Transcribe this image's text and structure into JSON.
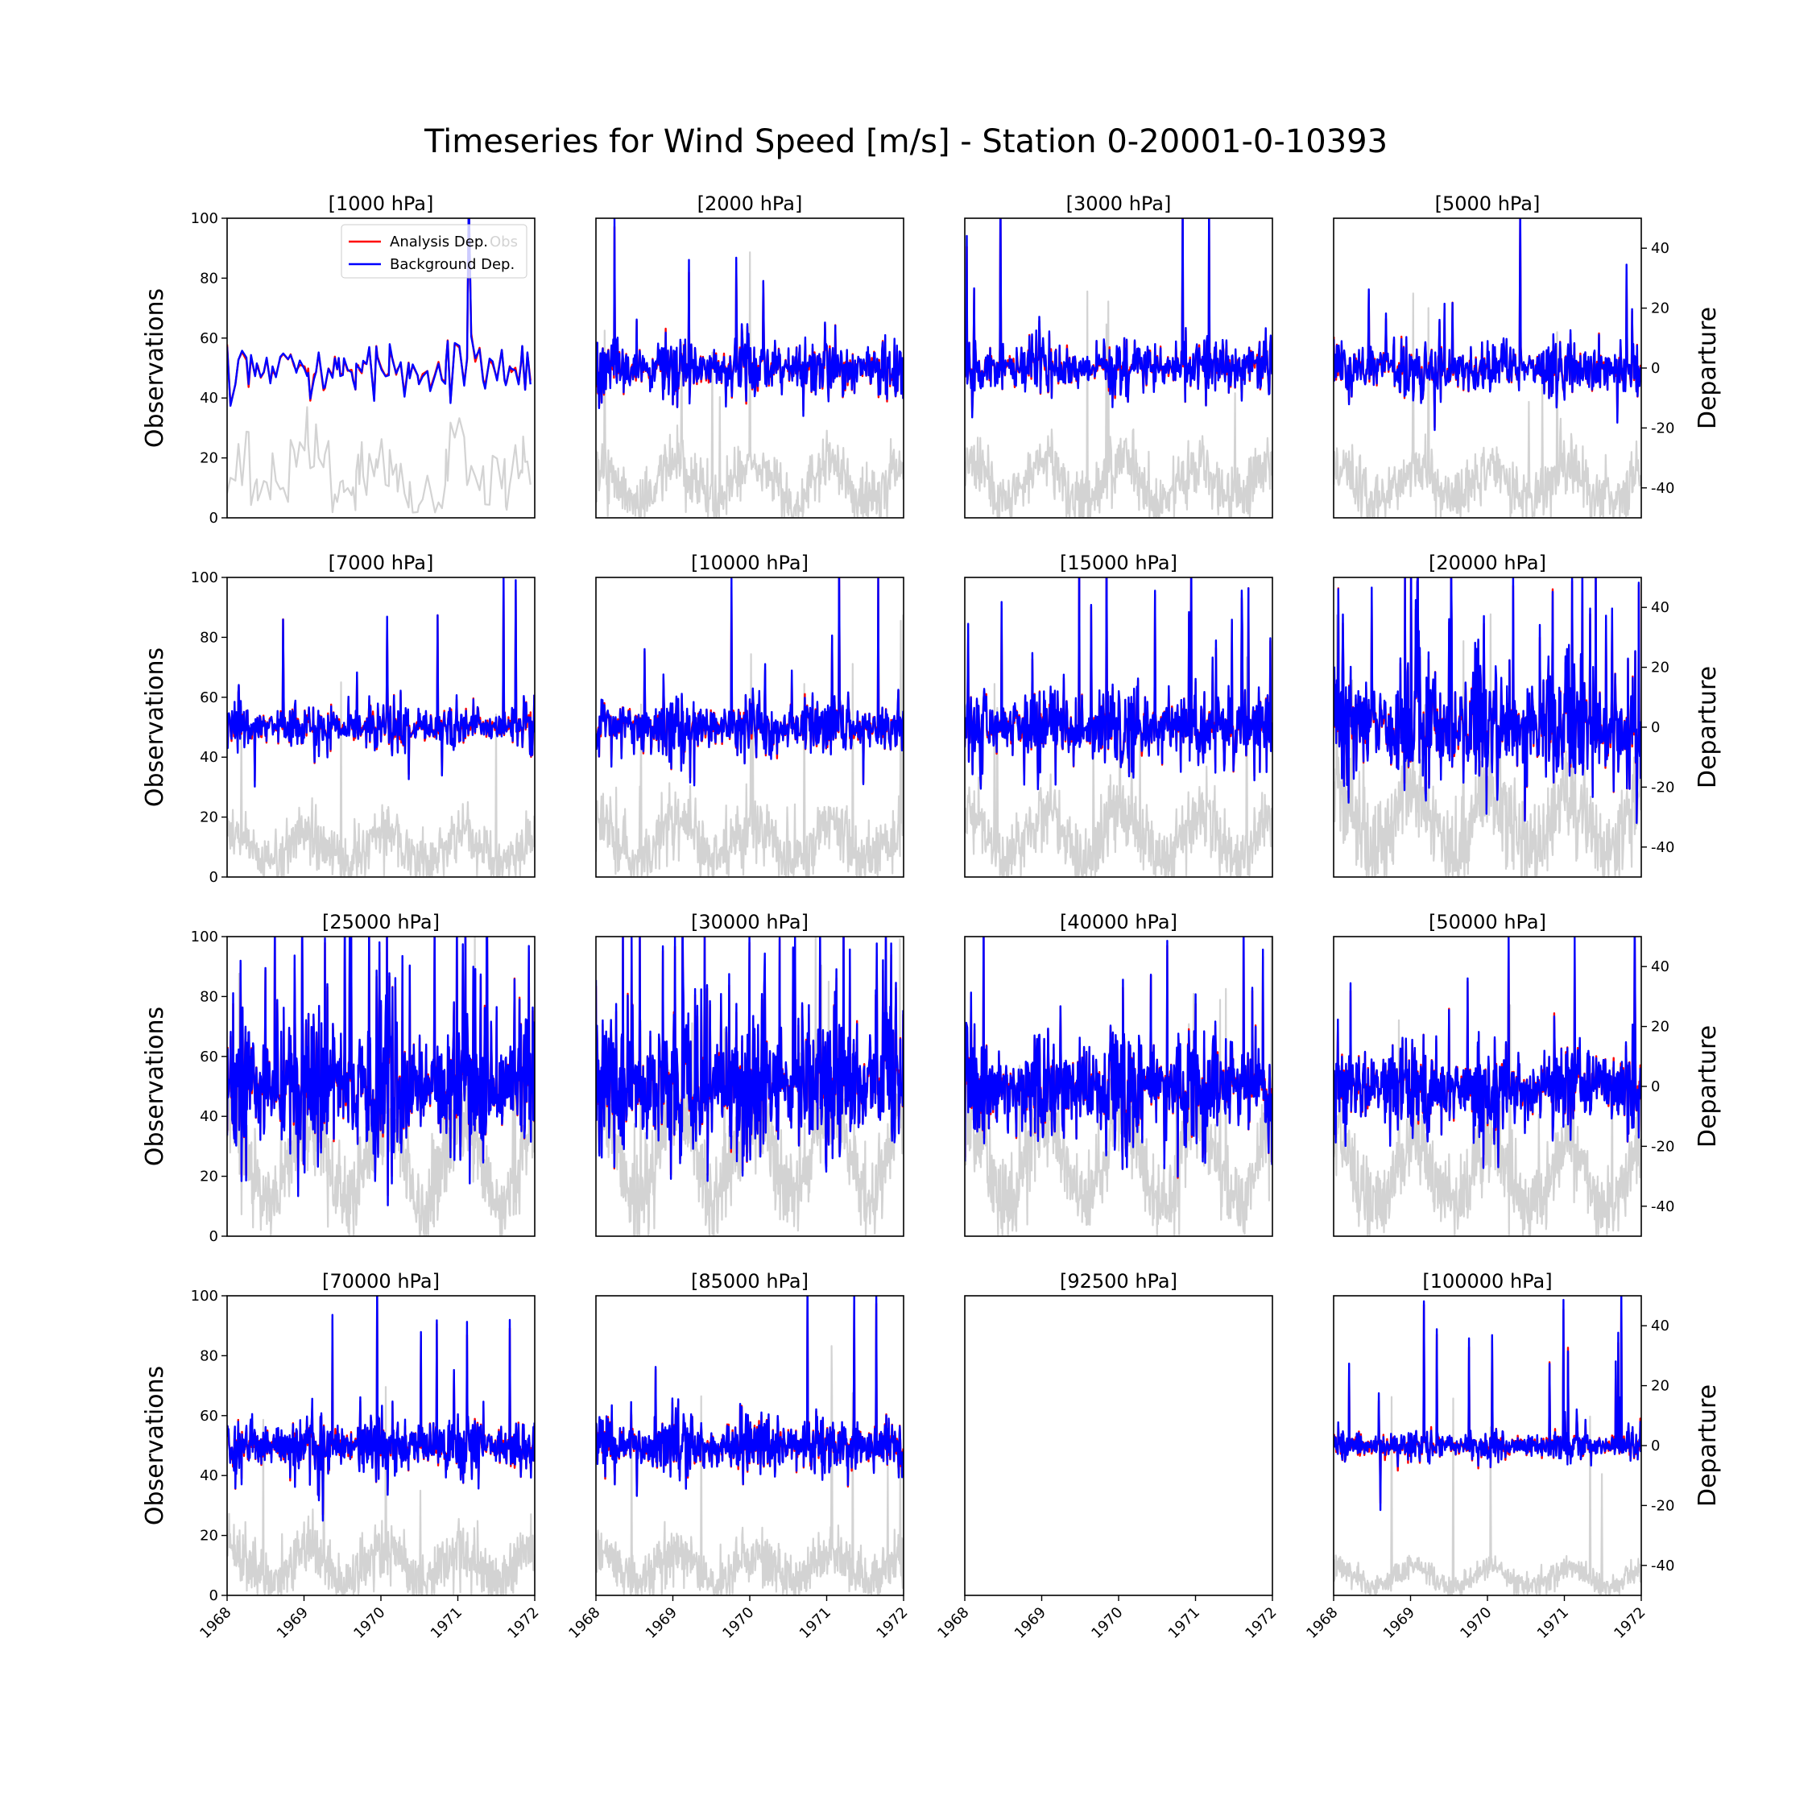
{
  "chart_data": {
    "type": "line",
    "title": "Timeseries for Wind Speed [m/s]  - Station 0-20001-0-10393",
    "ylabel_left": "Observations",
    "ylabel_right": "Departure",
    "ylim_left": [
      0,
      100
    ],
    "ylim_right": [
      -50,
      50
    ],
    "yticks_left": [
      0,
      20,
      40,
      60,
      80,
      100
    ],
    "yticks_right": [
      -40,
      -20,
      0,
      20,
      40
    ],
    "xlim": [
      1968,
      1972
    ],
    "xticks": [
      1968,
      1969,
      1970,
      1971,
      1972
    ],
    "legend": {
      "position": "upper-right of first panel",
      "entries": [
        {
          "label": "Analysis Dep.",
          "color": "#ff0000"
        },
        {
          "label": "Background Dep.",
          "color": "#0000ff"
        },
        {
          "label": "Obs",
          "color": "#d3d3d3"
        }
      ]
    },
    "colors": {
      "obs": "#d3d3d3",
      "analysis": "#ff0000",
      "background": "#0000ff"
    },
    "panels": [
      {
        "title": "[1000 hPa]",
        "has_data": true,
        "n": 120,
        "obs_mean": 14,
        "obs_spread": 12,
        "dep_spread": 6,
        "spikes": 1,
        "outliers": 0.0,
        "sparse": true
      },
      {
        "title": "[2000 hPa]",
        "has_data": true,
        "n": 500,
        "obs_mean": 12,
        "obs_spread": 9,
        "dep_spread": 5,
        "spikes": 3,
        "outliers": 0.01,
        "sparse": false
      },
      {
        "title": "[3000 hPa]",
        "has_data": true,
        "n": 500,
        "obs_mean": 12,
        "obs_spread": 10,
        "dep_spread": 5,
        "spikes": 5,
        "outliers": 0.01,
        "sparse": false
      },
      {
        "title": "[5000 hPa]",
        "has_data": true,
        "n": 500,
        "obs_mean": 11,
        "obs_spread": 9,
        "dep_spread": 5,
        "spikes": 3,
        "outliers": 0.01,
        "sparse": false
      },
      {
        "title": "[7000 hPa]",
        "has_data": true,
        "n": 500,
        "obs_mean": 10,
        "obs_spread": 9,
        "dep_spread": 4,
        "spikes": 5,
        "outliers": 0.01,
        "sparse": false
      },
      {
        "title": "[10000 hPa]",
        "has_data": true,
        "n": 520,
        "obs_mean": 12,
        "obs_spread": 10,
        "dep_spread": 5,
        "spikes": 4,
        "outliers": 0.01,
        "sparse": false
      },
      {
        "title": "[15000 hPa]",
        "has_data": true,
        "n": 560,
        "obs_mean": 14,
        "obs_spread": 11,
        "dep_spread": 7,
        "spikes": 14,
        "outliers": 0.015,
        "sparse": false
      },
      {
        "title": "[20000 hPa]",
        "has_data": true,
        "n": 600,
        "obs_mean": 18,
        "obs_spread": 14,
        "dep_spread": 10,
        "spikes": 24,
        "outliers": 0.02,
        "sparse": false
      },
      {
        "title": "[25000 hPa]",
        "has_data": true,
        "n": 620,
        "obs_mean": 25,
        "obs_spread": 14,
        "dep_spread": 12,
        "spikes": 34,
        "outliers": 0.03,
        "sparse": false
      },
      {
        "title": "[30000 hPa]",
        "has_data": true,
        "n": 640,
        "obs_mean": 28,
        "obs_spread": 14,
        "dep_spread": 12,
        "spikes": 36,
        "outliers": 0.03,
        "sparse": false
      },
      {
        "title": "[40000 hPa]",
        "has_data": true,
        "n": 640,
        "obs_mean": 25,
        "obs_spread": 13,
        "dep_spread": 9,
        "spikes": 10,
        "outliers": 0.02,
        "sparse": false
      },
      {
        "title": "[50000 hPa]",
        "has_data": true,
        "n": 600,
        "obs_mean": 20,
        "obs_spread": 12,
        "dep_spread": 8,
        "spikes": 6,
        "outliers": 0.015,
        "sparse": false
      },
      {
        "title": "[70000 hPa]",
        "has_data": true,
        "n": 640,
        "obs_mean": 10,
        "obs_spread": 9,
        "dep_spread": 5,
        "spikes": 6,
        "outliers": 0.01,
        "sparse": false
      },
      {
        "title": "[85000 hPa]",
        "has_data": true,
        "n": 640,
        "obs_mean": 9,
        "obs_spread": 8,
        "dep_spread": 5,
        "spikes": 3,
        "outliers": 0.01,
        "sparse": false
      },
      {
        "title": "[92500 hPa]",
        "has_data": false,
        "n": 0,
        "obs_mean": 0,
        "obs_spread": 0,
        "dep_spread": 0,
        "spikes": 0,
        "outliers": 0,
        "sparse": false
      },
      {
        "title": "[100000 hPa]",
        "has_data": true,
        "n": 600,
        "obs_mean": 6,
        "obs_spread": 4,
        "dep_spread": 2.5,
        "spikes": 10,
        "outliers": 0.01,
        "sparse": false
      }
    ]
  }
}
